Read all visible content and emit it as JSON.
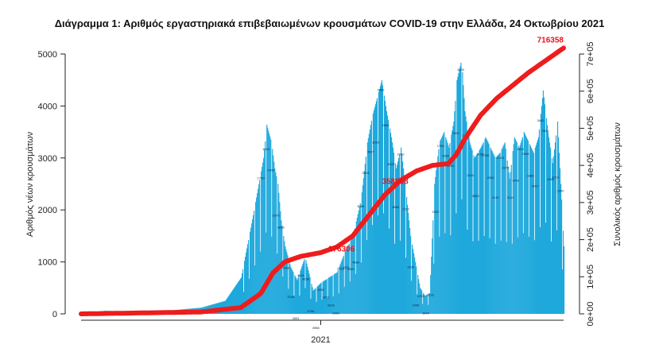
{
  "chart_data": {
    "type": "bar",
    "title": "Διάγραμμα 1: Αριθμός εργαστηριακά επιβεβαιωμένων κρουσμάτων COVID-19 στην Ελλάδα, 24 Οκτωβρίου 2021",
    "ylabel": "Αριθμός νέων κρουσμάτων",
    "y2label": "Συνολικός αριθμός κρουσμάτων",
    "xlabel": "",
    "ylim": [
      0,
      5000
    ],
    "y2lim": [
      0,
      700000
    ],
    "yticks": [
      "0",
      "1000",
      "2000",
      "3000",
      "4000",
      "5000"
    ],
    "y2ticks": [
      "0e+00",
      "1e+05",
      "2e+05",
      "3e+05",
      "4e+05",
      "5e+05",
      "6e+05",
      "7e+05"
    ],
    "xtick": {
      "label": "2021",
      "value": 300
    },
    "x_unit": "days since first case",
    "x_range": [
      0,
      604
    ],
    "grid": false,
    "colors": {
      "bars": "#1ea8dc",
      "cumulative": "#ee1c1c",
      "annotation": "#e8141b"
    },
    "daily_cases_keyframes": {
      "day": [
        0,
        30,
        60,
        100,
        150,
        180,
        200,
        215,
        228,
        232,
        238,
        242,
        246,
        250,
        255,
        262,
        270,
        280,
        290,
        300,
        310,
        320,
        330,
        340,
        350,
        358,
        364,
        370,
        376,
        382,
        388,
        394,
        400,
        406,
        412,
        418,
        424,
        430,
        436,
        442,
        448,
        454,
        460,
        466,
        470,
        476,
        480,
        486,
        492,
        500,
        506,
        512,
        518,
        524,
        530,
        536,
        542,
        548,
        554,
        560,
        566,
        572,
        578,
        584,
        590,
        596,
        604
      ],
      "value": [
        10,
        60,
        40,
        50,
        120,
        250,
        700,
        1900,
        3000,
        3640,
        3300,
        2800,
        2500,
        1800,
        1300,
        900,
        650,
        1100,
        450,
        600,
        700,
        800,
        1200,
        1500,
        2200,
        3300,
        3800,
        4150,
        4500,
        3900,
        3400,
        2800,
        3200,
        2400,
        1500,
        1000,
        500,
        350,
        400,
        2500,
        3300,
        3500,
        3200,
        3700,
        4500,
        4900,
        3900,
        3300,
        3000,
        3200,
        3400,
        3200,
        3000,
        3100,
        3300,
        2600,
        3400,
        3200,
        3500,
        3300,
        3100,
        3400,
        4300,
        3500,
        2900,
        3700,
        1300
      ]
    },
    "cumulative_keyframes": {
      "day": [
        0,
        150,
        200,
        225,
        240,
        255,
        275,
        300,
        320,
        340,
        360,
        380,
        400,
        420,
        440,
        460,
        470,
        480,
        500,
        520,
        540,
        560,
        580,
        604
      ],
      "value": [
        0,
        5000,
        17000,
        55000,
        110000,
        140000,
        155000,
        165000,
        180000,
        210000,
        265000,
        320000,
        360000,
        385000,
        400000,
        405000,
        430000,
        470000,
        535000,
        580000,
        615000,
        650000,
        680000,
        716358
      ]
    },
    "annotations": [
      {
        "text": "716358",
        "x": 604,
        "y": 716358
      },
      {
        "text": "358868",
        "x": 393,
        "y": 358868
      },
      {
        "text": "176306",
        "x": 326,
        "y": 176306
      }
    ],
    "bar_labels": [
      "1790",
      "1845",
      "2400",
      "1675",
      "3658",
      "3568",
      "3145",
      "2651",
      "3641",
      "4156",
      "4796",
      "4958",
      "4287",
      "3872",
      "3318",
      "1933",
      "2513",
      "4322",
      "4900",
      "4580",
      "3680",
      "2904",
      "3527",
      "3610",
      "2300",
      "2504",
      "3025",
      "3660",
      "2000",
      "1722",
      "1530",
      "1000",
      "1233",
      "1640",
      "1116",
      "2000",
      "1755",
      "2050",
      "1400",
      "2200",
      "1900",
      "2240",
      "2410",
      "3000",
      "3052",
      "2780",
      "2530",
      "2140",
      "2320",
      "2270",
      "3110",
      "1400",
      "1510",
      "2280",
      "1880",
      "4317",
      "3442",
      "2620",
      "1240",
      "1710",
      "1090"
    ]
  }
}
